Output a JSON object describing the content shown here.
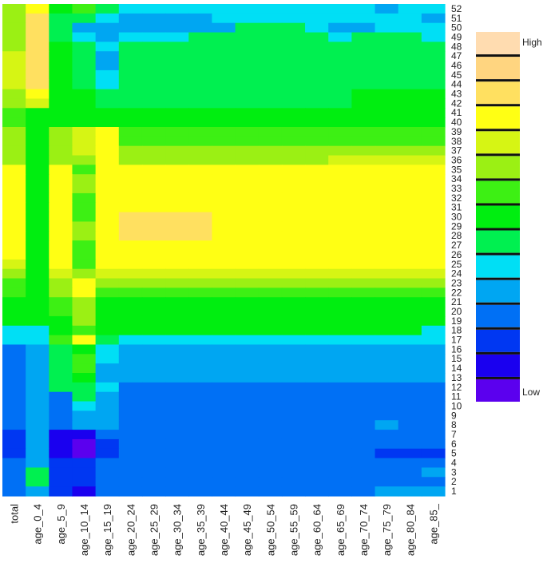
{
  "chart_data": {
    "type": "heatmap",
    "columns": [
      "total",
      "age_0_4",
      "age_5_9",
      "age_10_14",
      "age_15_19",
      "age_20_24",
      "age_25_29",
      "age_30_34",
      "age_35_39",
      "age_40_44",
      "age_45_49",
      "age_50_54",
      "age_55_59",
      "age_60_64",
      "age_65_69",
      "age_70_74",
      "age_75_79",
      "age_80_84",
      "age_85_"
    ],
    "rows": [
      52,
      51,
      50,
      49,
      48,
      47,
      46,
      45,
      44,
      43,
      42,
      41,
      40,
      39,
      38,
      37,
      36,
      35,
      34,
      33,
      32,
      31,
      30,
      29,
      28,
      27,
      26,
      25,
      24,
      23,
      22,
      21,
      20,
      19,
      18,
      17,
      16,
      15,
      14,
      13,
      12,
      11,
      10,
      9,
      8,
      7,
      6,
      5,
      4,
      3,
      2,
      1
    ],
    "values": [
      [
        9,
        11,
        7,
        8,
        6,
        5,
        5,
        5,
        5,
        5,
        5,
        5,
        5,
        5,
        5,
        5,
        4,
        5,
        5
      ],
      [
        9,
        12,
        6,
        6,
        5,
        4,
        4,
        4,
        4,
        5,
        5,
        5,
        5,
        5,
        5,
        5,
        5,
        5,
        4
      ],
      [
        9,
        12,
        6,
        4,
        4,
        4,
        4,
        4,
        4,
        4,
        6,
        6,
        6,
        5,
        4,
        4,
        5,
        5,
        5
      ],
      [
        9,
        12,
        6,
        5,
        4,
        5,
        5,
        5,
        6,
        6,
        6,
        6,
        6,
        6,
        5,
        6,
        6,
        6,
        5
      ],
      [
        9,
        12,
        7,
        6,
        5,
        6,
        6,
        6,
        6,
        6,
        6,
        6,
        6,
        6,
        6,
        6,
        6,
        6,
        6
      ],
      [
        10,
        12,
        7,
        6,
        4,
        6,
        6,
        6,
        6,
        6,
        6,
        6,
        6,
        6,
        6,
        6,
        6,
        6,
        6
      ],
      [
        10,
        12,
        7,
        6,
        4,
        6,
        6,
        6,
        6,
        6,
        6,
        6,
        6,
        6,
        6,
        6,
        6,
        6,
        6
      ],
      [
        10,
        12,
        7,
        6,
        5,
        6,
        6,
        6,
        6,
        6,
        6,
        6,
        6,
        6,
        6,
        6,
        6,
        6,
        6
      ],
      [
        10,
        12,
        7,
        6,
        5,
        6,
        6,
        6,
        6,
        6,
        6,
        6,
        6,
        6,
        6,
        6,
        6,
        6,
        6
      ],
      [
        9,
        11,
        7,
        7,
        6,
        6,
        6,
        6,
        6,
        6,
        6,
        6,
        6,
        6,
        6,
        7,
        7,
        7,
        7
      ],
      [
        9,
        10,
        7,
        7,
        6,
        6,
        6,
        6,
        6,
        6,
        6,
        6,
        6,
        6,
        6,
        7,
        7,
        7,
        7
      ],
      [
        8,
        7,
        7,
        7,
        7,
        7,
        7,
        7,
        7,
        7,
        7,
        7,
        7,
        7,
        7,
        7,
        7,
        7,
        7
      ],
      [
        8,
        7,
        7,
        7,
        7,
        7,
        7,
        7,
        7,
        7,
        7,
        7,
        7,
        7,
        7,
        7,
        7,
        7,
        7
      ],
      [
        9,
        7,
        9,
        10,
        11,
        8,
        8,
        8,
        8,
        8,
        8,
        8,
        8,
        8,
        8,
        8,
        8,
        8,
        8
      ],
      [
        9,
        7,
        9,
        10,
        11,
        8,
        8,
        8,
        8,
        8,
        8,
        8,
        8,
        8,
        8,
        8,
        8,
        8,
        8
      ],
      [
        9,
        7,
        9,
        10,
        11,
        9,
        9,
        9,
        9,
        9,
        9,
        9,
        9,
        9,
        9,
        9,
        9,
        9,
        9
      ],
      [
        9,
        7,
        9,
        9,
        11,
        9,
        9,
        9,
        9,
        9,
        9,
        9,
        9,
        9,
        10,
        10,
        10,
        10,
        10
      ],
      [
        11,
        7,
        11,
        8,
        11,
        11,
        11,
        11,
        11,
        11,
        11,
        11,
        11,
        11,
        11,
        11,
        11,
        11,
        11
      ],
      [
        11,
        7,
        11,
        9,
        11,
        11,
        11,
        11,
        11,
        11,
        11,
        11,
        11,
        11,
        11,
        11,
        11,
        11,
        11
      ],
      [
        11,
        7,
        11,
        9,
        11,
        11,
        11,
        11,
        11,
        11,
        11,
        11,
        11,
        11,
        11,
        11,
        11,
        11,
        11
      ],
      [
        11,
        7,
        11,
        8,
        11,
        11,
        11,
        11,
        11,
        11,
        11,
        11,
        11,
        11,
        11,
        11,
        11,
        11,
        11
      ],
      [
        11,
        7,
        11,
        8,
        11,
        11,
        11,
        11,
        11,
        11,
        11,
        11,
        11,
        11,
        11,
        11,
        11,
        11,
        11
      ],
      [
        11,
        7,
        11,
        8,
        11,
        12,
        12,
        12,
        12,
        11,
        11,
        11,
        11,
        11,
        11,
        11,
        11,
        11,
        11
      ],
      [
        11,
        7,
        11,
        9,
        11,
        12,
        12,
        12,
        12,
        11,
        11,
        11,
        11,
        11,
        11,
        11,
        11,
        11,
        11
      ],
      [
        11,
        7,
        11,
        9,
        11,
        12,
        12,
        12,
        12,
        11,
        11,
        11,
        11,
        11,
        11,
        11,
        11,
        11,
        11
      ],
      [
        11,
        7,
        11,
        8,
        11,
        11,
        11,
        11,
        11,
        11,
        11,
        11,
        11,
        11,
        11,
        11,
        11,
        11,
        11
      ],
      [
        11,
        7,
        11,
        8,
        11,
        11,
        11,
        11,
        11,
        11,
        11,
        11,
        11,
        11,
        11,
        11,
        11,
        11,
        11
      ],
      [
        10,
        7,
        11,
        8,
        11,
        11,
        11,
        11,
        11,
        11,
        11,
        11,
        11,
        11,
        11,
        11,
        11,
        11,
        11
      ],
      [
        9,
        7,
        10,
        9,
        10,
        10,
        10,
        10,
        10,
        10,
        10,
        10,
        10,
        10,
        10,
        10,
        10,
        10,
        10
      ],
      [
        8,
        7,
        9,
        11,
        9,
        9,
        9,
        9,
        9,
        9,
        9,
        9,
        9,
        9,
        9,
        9,
        9,
        9,
        9
      ],
      [
        8,
        7,
        9,
        11,
        8,
        8,
        8,
        8,
        8,
        8,
        8,
        8,
        8,
        8,
        8,
        8,
        8,
        8,
        8
      ],
      [
        7,
        7,
        8,
        9,
        7,
        7,
        7,
        7,
        7,
        7,
        7,
        7,
        7,
        7,
        7,
        7,
        7,
        7,
        7
      ],
      [
        7,
        7,
        8,
        9,
        7,
        7,
        7,
        7,
        7,
        7,
        7,
        7,
        7,
        7,
        7,
        7,
        7,
        7,
        7
      ],
      [
        7,
        7,
        7,
        9,
        7,
        7,
        7,
        7,
        7,
        7,
        7,
        7,
        7,
        7,
        7,
        7,
        7,
        7,
        7
      ],
      [
        5,
        5,
        7,
        8,
        7,
        7,
        7,
        7,
        7,
        7,
        7,
        7,
        7,
        7,
        7,
        7,
        7,
        7,
        5
      ],
      [
        5,
        5,
        8,
        11,
        6,
        5,
        5,
        5,
        5,
        5,
        5,
        5,
        5,
        5,
        5,
        5,
        5,
        5,
        5
      ],
      [
        3,
        4,
        6,
        7,
        5,
        4,
        4,
        4,
        4,
        4,
        4,
        4,
        4,
        4,
        4,
        4,
        4,
        4,
        4
      ],
      [
        3,
        4,
        6,
        8,
        5,
        4,
        4,
        4,
        4,
        4,
        4,
        4,
        4,
        4,
        4,
        4,
        4,
        4,
        4
      ],
      [
        3,
        4,
        6,
        8,
        4,
        4,
        4,
        4,
        4,
        4,
        4,
        4,
        4,
        4,
        4,
        4,
        4,
        4,
        4
      ],
      [
        3,
        4,
        6,
        7,
        4,
        4,
        4,
        4,
        4,
        4,
        4,
        4,
        4,
        4,
        4,
        4,
        4,
        4,
        4
      ],
      [
        3,
        4,
        6,
        6,
        5,
        3,
        3,
        3,
        3,
        3,
        3,
        3,
        3,
        3,
        3,
        3,
        3,
        3,
        3
      ],
      [
        3,
        4,
        3,
        6,
        4,
        3,
        3,
        3,
        3,
        3,
        3,
        3,
        3,
        3,
        3,
        3,
        3,
        3,
        3
      ],
      [
        3,
        4,
        3,
        5,
        4,
        3,
        3,
        3,
        3,
        3,
        3,
        3,
        3,
        3,
        3,
        3,
        3,
        3,
        3
      ],
      [
        3,
        4,
        3,
        4,
        4,
        3,
        3,
        3,
        3,
        3,
        3,
        3,
        3,
        3,
        3,
        3,
        3,
        3,
        3
      ],
      [
        3,
        4,
        3,
        4,
        4,
        3,
        3,
        3,
        3,
        3,
        3,
        3,
        3,
        3,
        3,
        3,
        4,
        3,
        3
      ],
      [
        2,
        4,
        1,
        1,
        3,
        3,
        3,
        3,
        3,
        3,
        3,
        3,
        3,
        3,
        3,
        3,
        3,
        3,
        3
      ],
      [
        2,
        4,
        1,
        0,
        2,
        3,
        3,
        3,
        3,
        3,
        3,
        3,
        3,
        3,
        3,
        3,
        3,
        3,
        3
      ],
      [
        2,
        4,
        1,
        0,
        2,
        3,
        3,
        3,
        3,
        3,
        3,
        3,
        3,
        3,
        3,
        3,
        2,
        2,
        2
      ],
      [
        3,
        4,
        2,
        2,
        3,
        3,
        3,
        3,
        3,
        3,
        3,
        3,
        3,
        3,
        3,
        3,
        3,
        3,
        3
      ],
      [
        3,
        6,
        2,
        2,
        3,
        3,
        3,
        3,
        3,
        3,
        3,
        3,
        3,
        3,
        3,
        3,
        3,
        3,
        4
      ],
      [
        3,
        6,
        2,
        2,
        3,
        3,
        3,
        3,
        3,
        3,
        3,
        3,
        3,
        3,
        3,
        3,
        3,
        3,
        3
      ],
      [
        3,
        4,
        2,
        1,
        3,
        3,
        3,
        3,
        3,
        3,
        3,
        3,
        3,
        3,
        3,
        3,
        4,
        4,
        4
      ]
    ],
    "palette": [
      "#5b00ee",
      "#1a00ef",
      "#0037f2",
      "#0070f5",
      "#00a6f2",
      "#00dff5",
      "#00f050",
      "#00ee10",
      "#3df014",
      "#9bf014",
      "#d6f514",
      "#ffff14",
      "#ffe060",
      "#ffd580",
      "#ffdcb0"
    ],
    "legend": {
      "high_label": "High",
      "low_label": "Low",
      "placement": "right"
    }
  }
}
